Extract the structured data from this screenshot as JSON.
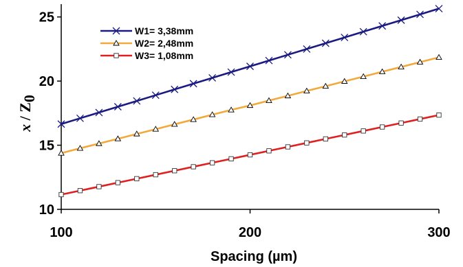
{
  "chart_data": {
    "type": "line",
    "x": [
      100,
      110,
      120,
      130,
      140,
      150,
      160,
      170,
      180,
      190,
      200,
      210,
      220,
      230,
      240,
      250,
      260,
      270,
      280,
      290,
      300
    ],
    "xlabel": "Spacing (µm)",
    "ylabel_parts": [
      "x",
      " / Z",
      "0"
    ],
    "xlim": [
      100,
      300
    ],
    "ylim": [
      10,
      26
    ],
    "xticks": [
      "100",
      "200",
      "300"
    ],
    "yticks": [
      "10",
      "15",
      "20",
      "25"
    ],
    "grid": false,
    "legend_position": "top-left",
    "series": [
      {
        "name": "W1= 3,38mm",
        "marker": "x",
        "color": "#1a1a80",
        "values": [
          16.65,
          17.1,
          17.55,
          18.0,
          18.45,
          18.9,
          19.35,
          19.8,
          20.25,
          20.7,
          21.15,
          21.6,
          22.05,
          22.5,
          22.95,
          23.4,
          23.85,
          24.3,
          24.75,
          25.2,
          25.65
        ]
      },
      {
        "name": "W2= 2,48mm",
        "marker": "triangle",
        "color": "#f2a93b",
        "values": [
          14.38,
          14.76,
          15.13,
          15.5,
          15.88,
          16.25,
          16.63,
          17.0,
          17.38,
          17.75,
          18.1,
          18.48,
          18.85,
          19.23,
          19.6,
          19.98,
          20.35,
          20.73,
          21.1,
          21.48,
          21.85
        ]
      },
      {
        "name": "W3= 1,08mm",
        "marker": "square",
        "color": "#e02020",
        "values": [
          11.15,
          11.46,
          11.77,
          12.08,
          12.39,
          12.7,
          13.01,
          13.32,
          13.63,
          13.94,
          14.25,
          14.56,
          14.87,
          15.18,
          15.49,
          15.8,
          16.11,
          16.42,
          16.73,
          17.04,
          17.35
        ]
      }
    ]
  }
}
